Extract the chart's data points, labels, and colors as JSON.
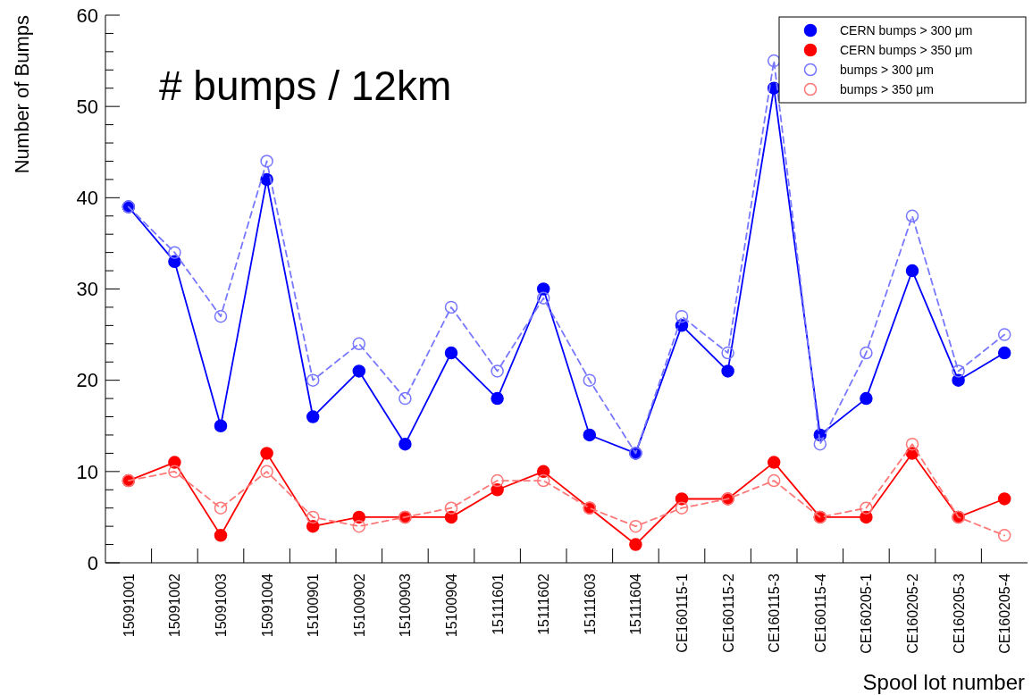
{
  "chart_data": {
    "type": "line",
    "annotations": [
      "# bumps / 12km"
    ],
    "xlabel": "Spool lot number",
    "ylabel": "Number of Bumps",
    "categories": [
      "15091001",
      "15091002",
      "15091003",
      "15091004",
      "15100901",
      "15100902",
      "15100903",
      "15100904",
      "15111601",
      "15111602",
      "15111603",
      "15111604",
      "CE160115-1",
      "CE160115-2",
      "CE160115-3",
      "CE160115-4",
      "CE160205-1",
      "CE160205-2",
      "CE160205-3",
      "CE160205-4"
    ],
    "ylim": [
      0,
      60
    ],
    "yticks": [
      0,
      {
        "value": 2,
        "label": null
      },
      {
        "value": 4,
        "label": null
      },
      {
        "value": 6,
        "label": null
      },
      {
        "value": 8,
        "label": null
      },
      10,
      {
        "value": 12,
        "label": null
      },
      {
        "value": 14,
        "label": null
      },
      {
        "value": 16,
        "label": null
      },
      {
        "value": 18,
        "label": null
      },
      20,
      {
        "value": 22,
        "label": null
      },
      {
        "value": 24,
        "label": null
      },
      {
        "value": 26,
        "label": null
      },
      {
        "value": 28,
        "label": null
      },
      30,
      {
        "value": 32,
        "label": null
      },
      {
        "value": 34,
        "label": null
      },
      {
        "value": 36,
        "label": null
      },
      {
        "value": 38,
        "label": null
      },
      40,
      {
        "value": 42,
        "label": null
      },
      {
        "value": 44,
        "label": null
      },
      {
        "value": 46,
        "label": null
      },
      {
        "value": 48,
        "label": null
      },
      50,
      {
        "value": 52,
        "label": null
      },
      {
        "value": 54,
        "label": null
      },
      {
        "value": 56,
        "label": null
      },
      {
        "value": 58,
        "label": null
      },
      60
    ],
    "legend": "top right",
    "marker": "circle",
    "grid": false,
    "series": [
      {
        "name": "CERN bumps > 300 μm",
        "color": "#0000ff",
        "line_style": "solid",
        "values": [
          39,
          33,
          15,
          42,
          16,
          21,
          13,
          23,
          18,
          30,
          14,
          12,
          26,
          21,
          52,
          14,
          18,
          32,
          20,
          23
        ]
      },
      {
        "name": "CERN bumps > 350 μm",
        "color": "#ff0000",
        "line_style": "solid",
        "values": [
          9,
          11,
          3,
          12,
          4,
          5,
          5,
          5,
          8,
          10,
          6,
          2,
          7,
          7,
          11,
          5,
          5,
          12,
          5,
          7
        ]
      },
      {
        "name": "bumps > 300 μm",
        "color": "#7777ff",
        "line_style": "dashed",
        "values": [
          39,
          34,
          27,
          44,
          20,
          24,
          18,
          28,
          21,
          29,
          20,
          12,
          27,
          23,
          55,
          13,
          23,
          38,
          21,
          25
        ]
      },
      {
        "name": "bumps > 350 μm",
        "color": "#ff7777",
        "line_style": "dashed",
        "values": [
          9,
          10,
          6,
          10,
          5,
          4,
          5,
          6,
          9,
          9,
          6,
          4,
          6,
          7,
          9,
          5,
          6,
          13,
          5,
          3
        ]
      }
    ]
  }
}
